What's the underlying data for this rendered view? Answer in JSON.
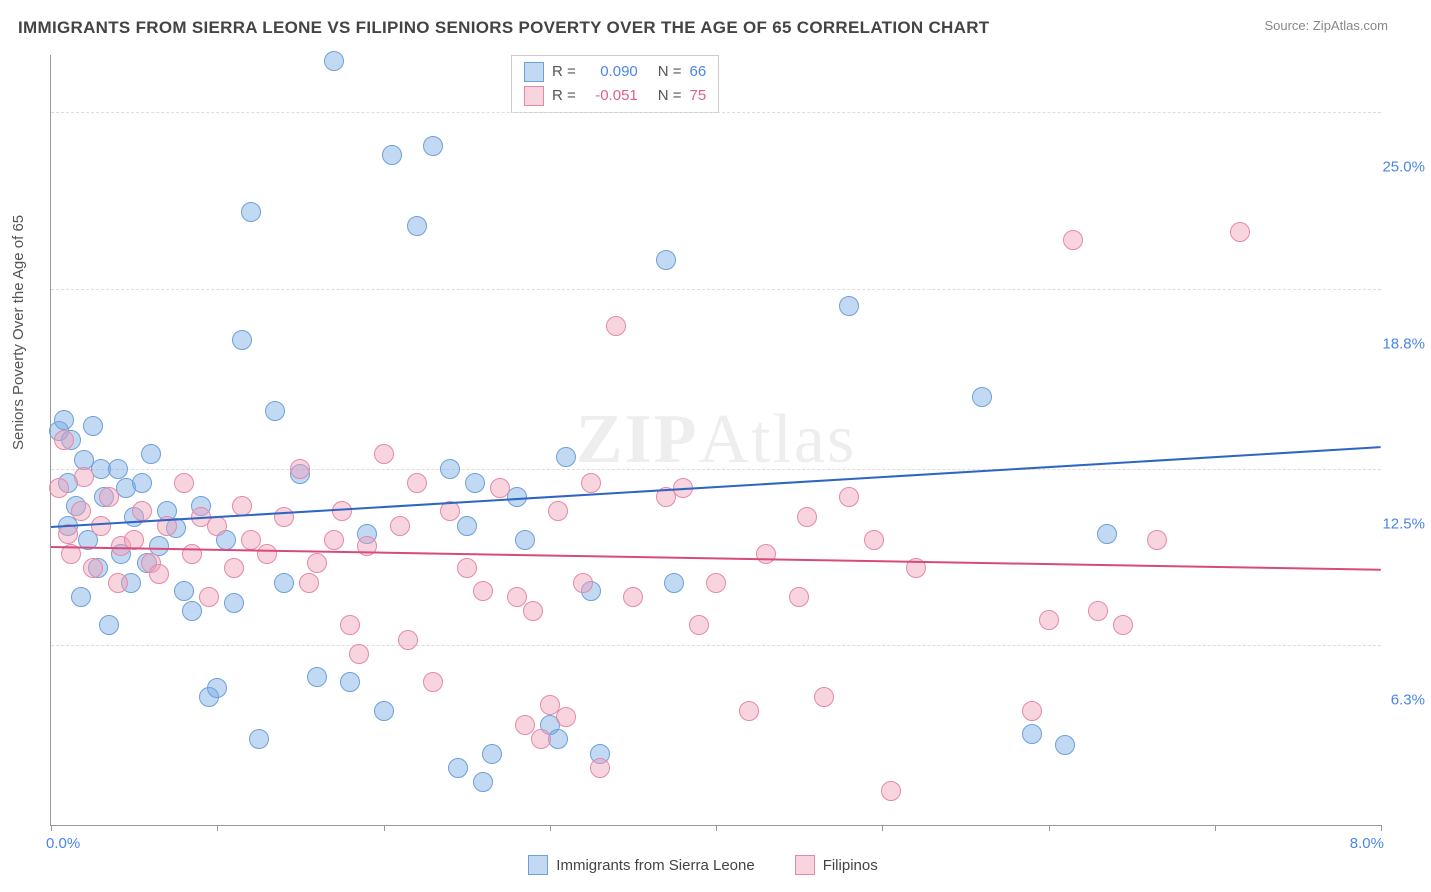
{
  "title": "IMMIGRANTS FROM SIERRA LEONE VS FILIPINO SENIORS POVERTY OVER THE AGE OF 65 CORRELATION CHART",
  "source_label": "Source: ",
  "source_name": "ZipAtlas.com",
  "ylabel": "Seniors Poverty Over the Age of 65",
  "watermark_a": "ZIP",
  "watermark_b": "Atlas",
  "chart": {
    "type": "scatter",
    "xlim": [
      0.0,
      8.0
    ],
    "ylim": [
      0.0,
      27.0
    ],
    "x_ticks_pct": [
      0,
      12.5,
      25,
      37.5,
      50,
      62.5,
      75,
      87.5,
      100
    ],
    "x_left_label": "0.0%",
    "x_right_label": "8.0%",
    "x_label_color": "#4a86e8",
    "y_grid": [
      {
        "value": 6.3,
        "label": "6.3%"
      },
      {
        "value": 12.5,
        "label": "12.5%"
      },
      {
        "value": 18.8,
        "label": "18.8%"
      },
      {
        "value": 25.0,
        "label": "25.0%"
      }
    ],
    "y_label_color": "#4a86e8",
    "grid_color": "#dddddd",
    "axis_color": "#999999",
    "background_color": "#ffffff",
    "point_radius": 9,
    "point_border_width": 1,
    "series": [
      {
        "name": "Immigrants from Sierra Leone",
        "fill": "rgba(120,170,230,0.45)",
        "stroke": "#6fa0d8",
        "R": "0.090",
        "N": "66",
        "R_color": "#4a86e8",
        "N_color": "#4a86e8",
        "trend": {
          "y_at_xmin": 10.5,
          "y_at_xmax": 13.3,
          "color": "#2f66c4",
          "width": 2
        },
        "points": [
          [
            0.05,
            13.8
          ],
          [
            0.08,
            14.2
          ],
          [
            0.1,
            12.0
          ],
          [
            0.1,
            10.5
          ],
          [
            0.12,
            13.5
          ],
          [
            0.15,
            11.2
          ],
          [
            0.18,
            8.0
          ],
          [
            0.2,
            12.8
          ],
          [
            0.22,
            10.0
          ],
          [
            0.25,
            14.0
          ],
          [
            0.28,
            9.0
          ],
          [
            0.3,
            12.5
          ],
          [
            0.32,
            11.5
          ],
          [
            0.35,
            7.0
          ],
          [
            0.4,
            12.5
          ],
          [
            0.42,
            9.5
          ],
          [
            0.45,
            11.8
          ],
          [
            0.48,
            8.5
          ],
          [
            0.5,
            10.8
          ],
          [
            0.55,
            12.0
          ],
          [
            0.58,
            9.2
          ],
          [
            0.6,
            13.0
          ],
          [
            0.65,
            9.8
          ],
          [
            0.7,
            11.0
          ],
          [
            0.75,
            10.4
          ],
          [
            0.8,
            8.2
          ],
          [
            0.85,
            7.5
          ],
          [
            0.9,
            11.2
          ],
          [
            0.95,
            4.5
          ],
          [
            1.0,
            4.8
          ],
          [
            1.05,
            10.0
          ],
          [
            1.1,
            7.8
          ],
          [
            1.15,
            17.0
          ],
          [
            1.2,
            21.5
          ],
          [
            1.25,
            3.0
          ],
          [
            1.35,
            14.5
          ],
          [
            1.4,
            8.5
          ],
          [
            1.5,
            12.3
          ],
          [
            1.6,
            5.2
          ],
          [
            1.7,
            26.8
          ],
          [
            1.8,
            5.0
          ],
          [
            1.9,
            10.2
          ],
          [
            2.0,
            4.0
          ],
          [
            2.05,
            23.5
          ],
          [
            2.2,
            21.0
          ],
          [
            2.3,
            23.8
          ],
          [
            2.4,
            12.5
          ],
          [
            2.45,
            2.0
          ],
          [
            2.5,
            10.5
          ],
          [
            2.55,
            12.0
          ],
          [
            2.6,
            1.5
          ],
          [
            2.65,
            2.5
          ],
          [
            2.8,
            11.5
          ],
          [
            2.85,
            10.0
          ],
          [
            3.0,
            3.5
          ],
          [
            3.05,
            3.0
          ],
          [
            3.1,
            12.9
          ],
          [
            3.25,
            8.2
          ],
          [
            3.3,
            2.5
          ],
          [
            3.7,
            19.8
          ],
          [
            3.75,
            8.5
          ],
          [
            4.8,
            18.2
          ],
          [
            5.6,
            15.0
          ],
          [
            5.9,
            3.2
          ],
          [
            6.1,
            2.8
          ],
          [
            6.35,
            10.2
          ]
        ]
      },
      {
        "name": "Filipinos",
        "fill": "rgba(240,160,185,0.45)",
        "stroke": "#e48aa8",
        "R": "-0.051",
        "N": "75",
        "R_color": "#e06088",
        "N_color": "#e06088",
        "trend": {
          "y_at_xmin": 9.8,
          "y_at_xmax": 9.0,
          "color": "#d84a7a",
          "width": 2
        },
        "points": [
          [
            0.05,
            11.8
          ],
          [
            0.08,
            13.5
          ],
          [
            0.1,
            10.2
          ],
          [
            0.12,
            9.5
          ],
          [
            0.18,
            11.0
          ],
          [
            0.2,
            12.2
          ],
          [
            0.25,
            9.0
          ],
          [
            0.3,
            10.5
          ],
          [
            0.35,
            11.5
          ],
          [
            0.4,
            8.5
          ],
          [
            0.42,
            9.8
          ],
          [
            0.5,
            10.0
          ],
          [
            0.55,
            11.0
          ],
          [
            0.6,
            9.2
          ],
          [
            0.65,
            8.8
          ],
          [
            0.7,
            10.5
          ],
          [
            0.8,
            12.0
          ],
          [
            0.85,
            9.5
          ],
          [
            0.9,
            10.8
          ],
          [
            0.95,
            8.0
          ],
          [
            1.0,
            10.5
          ],
          [
            1.1,
            9.0
          ],
          [
            1.15,
            11.2
          ],
          [
            1.2,
            10.0
          ],
          [
            1.3,
            9.5
          ],
          [
            1.4,
            10.8
          ],
          [
            1.5,
            12.5
          ],
          [
            1.55,
            8.5
          ],
          [
            1.6,
            9.2
          ],
          [
            1.7,
            10.0
          ],
          [
            1.75,
            11.0
          ],
          [
            1.8,
            7.0
          ],
          [
            1.85,
            6.0
          ],
          [
            1.9,
            9.8
          ],
          [
            2.0,
            13.0
          ],
          [
            2.1,
            10.5
          ],
          [
            2.15,
            6.5
          ],
          [
            2.2,
            12.0
          ],
          [
            2.3,
            5.0
          ],
          [
            2.4,
            11.0
          ],
          [
            2.5,
            9.0
          ],
          [
            2.6,
            8.2
          ],
          [
            2.7,
            11.8
          ],
          [
            2.8,
            8.0
          ],
          [
            2.85,
            3.5
          ],
          [
            2.9,
            7.5
          ],
          [
            2.95,
            3.0
          ],
          [
            3.0,
            4.2
          ],
          [
            3.05,
            11.0
          ],
          [
            3.1,
            3.8
          ],
          [
            3.2,
            8.5
          ],
          [
            3.25,
            12.0
          ],
          [
            3.3,
            2.0
          ],
          [
            3.4,
            17.5
          ],
          [
            3.5,
            8.0
          ],
          [
            3.7,
            11.5
          ],
          [
            3.8,
            11.8
          ],
          [
            3.9,
            7.0
          ],
          [
            4.0,
            8.5
          ],
          [
            4.2,
            4.0
          ],
          [
            4.3,
            9.5
          ],
          [
            4.5,
            8.0
          ],
          [
            4.55,
            10.8
          ],
          [
            4.65,
            4.5
          ],
          [
            4.8,
            11.5
          ],
          [
            4.95,
            10.0
          ],
          [
            5.05,
            1.2
          ],
          [
            5.2,
            9.0
          ],
          [
            5.9,
            4.0
          ],
          [
            6.0,
            7.2
          ],
          [
            6.15,
            20.5
          ],
          [
            6.3,
            7.5
          ],
          [
            6.45,
            7.0
          ],
          [
            6.65,
            10.0
          ],
          [
            7.15,
            20.8
          ]
        ]
      }
    ]
  },
  "legend_stats_labels": {
    "R": "R =",
    "N": "N ="
  },
  "bottom_legend_series1": "Immigrants from Sierra Leone",
  "bottom_legend_series2": "Filipinos"
}
